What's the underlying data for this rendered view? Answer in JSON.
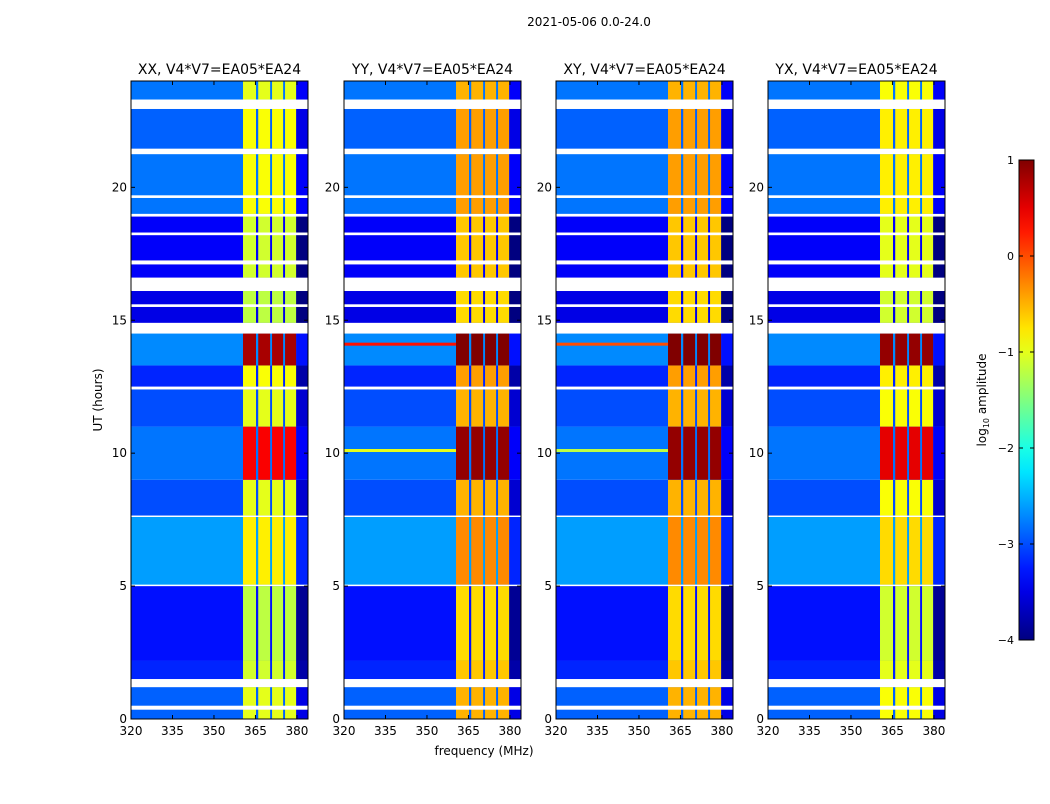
{
  "chart_data": {
    "type": "heatmap",
    "title": "2021-05-06 0.0-24.0",
    "xlabel": "frequency (MHz)",
    "ylabel": "UT (hours)",
    "xlim": [
      320,
      384
    ],
    "ylim": [
      0,
      24
    ],
    "xticks": [
      320,
      335,
      350,
      365,
      380
    ],
    "yticks": [
      0,
      5,
      10,
      15,
      20
    ],
    "colorbar": {
      "label": "log",
      "label_sub": "10",
      "label_rest": " amplitude",
      "range": [
        -4,
        1
      ],
      "ticks": [
        1,
        0,
        -1,
        -2,
        -3,
        -4
      ],
      "tick_labels": [
        "1",
        "0",
        "−1",
        "−2",
        "−3",
        "−4"
      ],
      "colormap": "jet"
    },
    "band_channels_mhz": [
      [
        360.5,
        365.2
      ],
      [
        366.0,
        370.3
      ],
      [
        371.0,
        375.0
      ],
      [
        375.7,
        379.7
      ]
    ],
    "flagged_hours": [
      [
        0.35,
        0.5
      ],
      [
        1.2,
        1.5
      ],
      [
        5.0,
        5.05
      ],
      [
        7.6,
        7.65
      ],
      [
        12.4,
        12.5
      ],
      [
        14.5,
        14.9
      ],
      [
        15.5,
        15.6
      ],
      [
        16.1,
        16.6
      ],
      [
        17.1,
        17.25
      ],
      [
        18.2,
        18.3
      ],
      [
        18.9,
        19.0
      ],
      [
        19.6,
        19.7
      ],
      [
        21.25,
        21.45
      ],
      [
        22.95,
        23.3
      ]
    ],
    "segments": [
      {
        "hours": [
          0.0,
          1.2
        ],
        "background": -2.9,
        "band": -1.0
      },
      {
        "hours": [
          1.5,
          2.2
        ],
        "background": -3.2,
        "band": -1.1
      },
      {
        "hours": [
          2.2,
          5.0
        ],
        "background": -3.3,
        "band": -1.2
      },
      {
        "hours": [
          5.05,
          7.6
        ],
        "background": -2.6,
        "band": -0.8
      },
      {
        "hours": [
          7.65,
          9.0
        ],
        "background": -3.0,
        "band": -1.0
      },
      {
        "hours": [
          9.0,
          11.0
        ],
        "background": -2.8,
        "band": 0.4
      },
      {
        "hours": [
          11.0,
          12.4
        ],
        "background": -3.0,
        "band": -1.0
      },
      {
        "hours": [
          12.5,
          13.3
        ],
        "background": -3.2,
        "band": -0.9
      },
      {
        "hours": [
          13.3,
          14.5
        ],
        "background": -2.7,
        "band": 0.8
      },
      {
        "hours": [
          14.9,
          16.1
        ],
        "background": -3.5,
        "band": -1.2
      },
      {
        "hours": [
          16.6,
          19.0
        ],
        "background": -3.4,
        "band": -1.1
      },
      {
        "hours": [
          19.0,
          21.25
        ],
        "background": -2.8,
        "band": -0.9
      },
      {
        "hours": [
          21.45,
          22.95
        ],
        "background": -2.9,
        "band": -0.9
      },
      {
        "hours": [
          23.3,
          24.0
        ],
        "background": -2.8,
        "band": -1.0
      }
    ],
    "panels": [
      {
        "title": "XX, V4*V7=EA05*EA24",
        "band_offset": 0.0,
        "lines": []
      },
      {
        "title": "YY, V4*V7=EA05*EA24",
        "band_offset": 0.5,
        "lines": [
          {
            "hour": 14.1,
            "level": 0.3
          },
          {
            "hour": 10.1,
            "level": -1.0
          }
        ]
      },
      {
        "title": "XY, V4*V7=EA05*EA24",
        "band_offset": 0.5,
        "lines": [
          {
            "hour": 14.1,
            "level": 0.0
          },
          {
            "hour": 10.1,
            "level": -1.2
          }
        ]
      },
      {
        "title": "YX, V4*V7=EA05*EA24",
        "band_offset": 0.1,
        "lines": []
      }
    ]
  }
}
